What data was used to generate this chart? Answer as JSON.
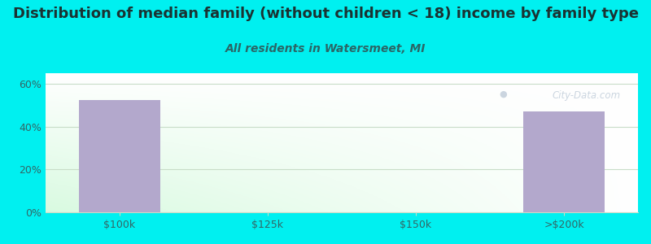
{
  "title": "Distribution of median family (without children < 18) income by family type",
  "subtitle": "All residents in Watersmeet, MI",
  "categories": [
    "$100k",
    "$125k",
    "$150k",
    ">$200k"
  ],
  "values": [
    52.4,
    0,
    0,
    47.1
  ],
  "bar_color": "#b3a8cc",
  "background_color": "#00f0f0",
  "title_color": "#1a3333",
  "subtitle_color": "#2a6666",
  "axis_color": "#336666",
  "grid_color": "#c8ddc8",
  "ylim": [
    0,
    65
  ],
  "yticks": [
    0,
    20,
    40,
    60
  ],
  "ytick_labels": [
    "0%",
    "20%",
    "40%",
    "60%"
  ],
  "title_fontsize": 13,
  "subtitle_fontsize": 10,
  "tick_fontsize": 9,
  "watermark_text": "City-Data.com",
  "watermark_color": "#aabbcc",
  "watermark_alpha": 0.6
}
